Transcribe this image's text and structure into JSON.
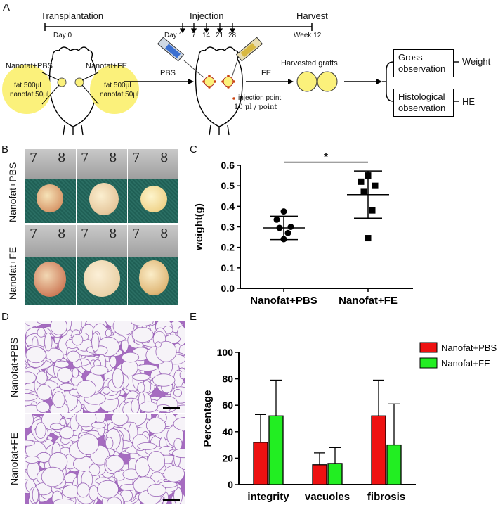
{
  "panels": {
    "a": "A",
    "b": "B",
    "c": "C",
    "d": "D",
    "e": "E"
  },
  "timeline": {
    "transplantation": "Transplantation",
    "injection": "Injection",
    "harvest": "Harvest",
    "day0": "Day 0",
    "day1": "Day 1",
    "d7": "7",
    "d14": "14",
    "d21": "21",
    "d28": "28",
    "week12": "Week 12"
  },
  "schematic": {
    "left_label": "Nanofat+PBS",
    "right_label": "Nanofat+FE",
    "fat_left": "fat  500μl",
    "nano_left": "nanofat 50μl",
    "fat_right": "fat  500μl",
    "nano_right": "nanofat 50μl",
    "pbs": "PBS",
    "fe": "FE",
    "injection_point": "injection point",
    "dose": "10 μl / point",
    "harvested": "Harvested grafts",
    "gross1": "Gross",
    "gross2": "observation",
    "histo1": "Histological",
    "histo2": "observation",
    "weight": "Weight",
    "he": "HE"
  },
  "photos": {
    "row1_label": "Nanofat+PBS",
    "row2_label": "Nanofat+FE",
    "ruler7": "7",
    "ruler8": "8"
  },
  "histology": {
    "row1_label": "Nanofat+PBS",
    "row2_label": "Nanofat+FE"
  },
  "chart_data": [
    {
      "type": "scatter",
      "panel": "C",
      "ylabel": "weight(g)",
      "ylim": [
        0.0,
        0.6
      ],
      "yticks": [
        "0.0",
        "0.1",
        "0.2",
        "0.3",
        "0.4",
        "0.5",
        "0.6"
      ],
      "categories": [
        "Nanofat+PBS",
        "Nanofat+FE"
      ],
      "series": [
        {
          "category": "Nanofat+PBS",
          "marker": "circle",
          "points": [
            0.375,
            0.335,
            0.3,
            0.295,
            0.27,
            0.24
          ],
          "mean": 0.295,
          "sd": 0.057
        },
        {
          "category": "Nanofat+FE",
          "marker": "square",
          "points": [
            0.55,
            0.52,
            0.5,
            0.47,
            0.38,
            0.245
          ],
          "mean": 0.457,
          "sd": 0.115
        }
      ],
      "significance": "*"
    },
    {
      "type": "bar",
      "panel": "E",
      "ylabel": "Percentage",
      "ylim": [
        0,
        100
      ],
      "yticks": [
        "0",
        "20",
        "40",
        "60",
        "80",
        "100"
      ],
      "categories": [
        "integrity",
        "vacuoles",
        "fibrosis"
      ],
      "series": [
        {
          "name": "Nanofat+PBS",
          "color": "#ee1111",
          "values": [
            32,
            15,
            52
          ],
          "errors": [
            21,
            9,
            27
          ]
        },
        {
          "name": "Nanofat+FE",
          "color": "#22ee22",
          "values": [
            52,
            16,
            30
          ],
          "errors": [
            27,
            12,
            31
          ]
        }
      ],
      "legend_position": "top-right"
    }
  ]
}
